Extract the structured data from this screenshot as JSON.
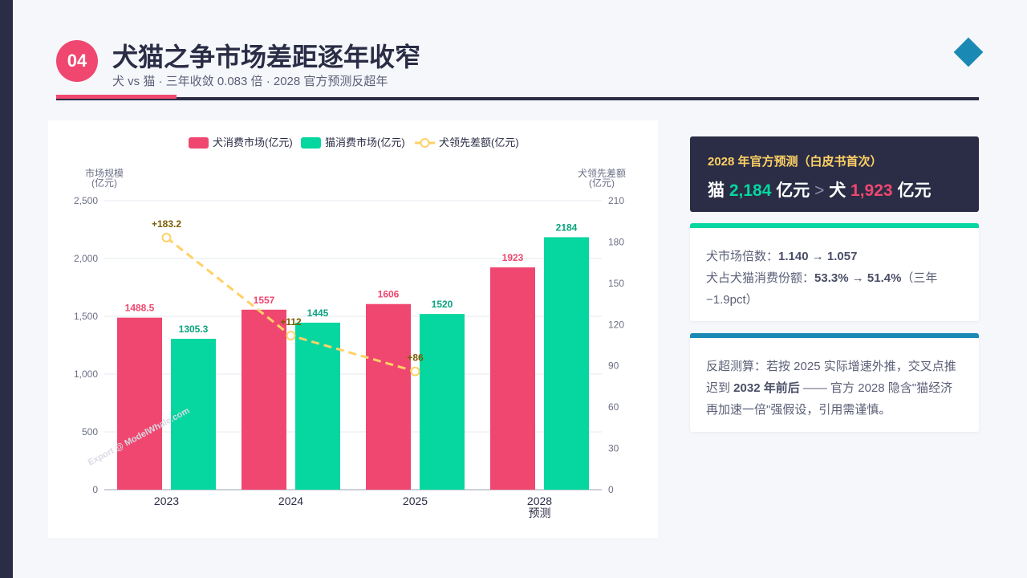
{
  "header": {
    "number": "04",
    "title": "犬猫之争市场差距逐年收窄",
    "subtitle": "犬 vs 猫 · 三年收敛 0.083 倍 · 2028 官方预测反超年"
  },
  "colors": {
    "dog": "#ef476f",
    "cat": "#06d6a0",
    "gap": "#ffd166",
    "navy": "#2a2d45",
    "blue": "#1a8ab5"
  },
  "chart_data": {
    "type": "bar",
    "categories": [
      "2023",
      "2024",
      "2025",
      "2028"
    ],
    "category_sublabels": [
      "",
      "",
      "",
      "预测"
    ],
    "series": [
      {
        "name": "犬消费市场(亿元)",
        "type": "bar",
        "axis": "left",
        "color": "#ef476f",
        "values": [
          1488.5,
          1557,
          1606,
          1923
        ],
        "labels": [
          "1488.5",
          "1557",
          "1606",
          "1923"
        ]
      },
      {
        "name": "猫消费市场(亿元)",
        "type": "bar",
        "axis": "left",
        "color": "#06d6a0",
        "values": [
          1305.3,
          1445,
          1520,
          2184
        ],
        "labels": [
          "1305.3",
          "1445",
          "1520",
          "2184"
        ]
      },
      {
        "name": "犬领先差额(亿元)",
        "type": "line",
        "axis": "right",
        "color": "#ffd166",
        "values": [
          183.2,
          112,
          86,
          null
        ],
        "labels": [
          "+183.2",
          "+112",
          "+86",
          ""
        ]
      }
    ],
    "y_left": {
      "label": [
        "市场规模",
        "(亿元)"
      ],
      "range": [
        0,
        2500
      ],
      "ticks": [
        0,
        500,
        1000,
        1500,
        2000,
        2500
      ],
      "tick_labels": [
        "0",
        "500",
        "1,000",
        "1,500",
        "2,000",
        "2,500"
      ]
    },
    "y_right": {
      "label": [
        "犬领先差额",
        "(亿元)"
      ],
      "range": [
        0,
        210
      ],
      "ticks": [
        0,
        30,
        60,
        90,
        120,
        150,
        180,
        210
      ],
      "tick_labels": [
        "0",
        "30",
        "60",
        "90",
        "120",
        "150",
        "180",
        "210"
      ]
    },
    "grid": true,
    "legend": "top-center",
    "watermark": "Export @ ModelWhale.com"
  },
  "cards": {
    "forecast": {
      "heading": "2028 年官方预测（白皮书首次）",
      "cat_label": "猫",
      "cat_value": "2,184",
      "unit1": "亿元",
      "gt": ">",
      "dog_label": "犬",
      "dog_value": "1,923",
      "unit2": "亿元"
    },
    "ratio": {
      "l1_prefix": "犬市场倍数：",
      "l1_value": "1.140 → 1.057",
      "l2_prefix": "犬占犬猫消费份额：",
      "l2_value": "53.3% → 51.4%",
      "l2_suffix": "（三年−1.9pct）"
    },
    "estimate": {
      "t1": "反超测算：若按 2025 实际增速外推，交叉点推迟到 ",
      "bold": "2032 年前后",
      "t2": " —— 官方 2028 隐含\"猫经济再加速一倍\"强假设，引用需谨慎。"
    }
  }
}
